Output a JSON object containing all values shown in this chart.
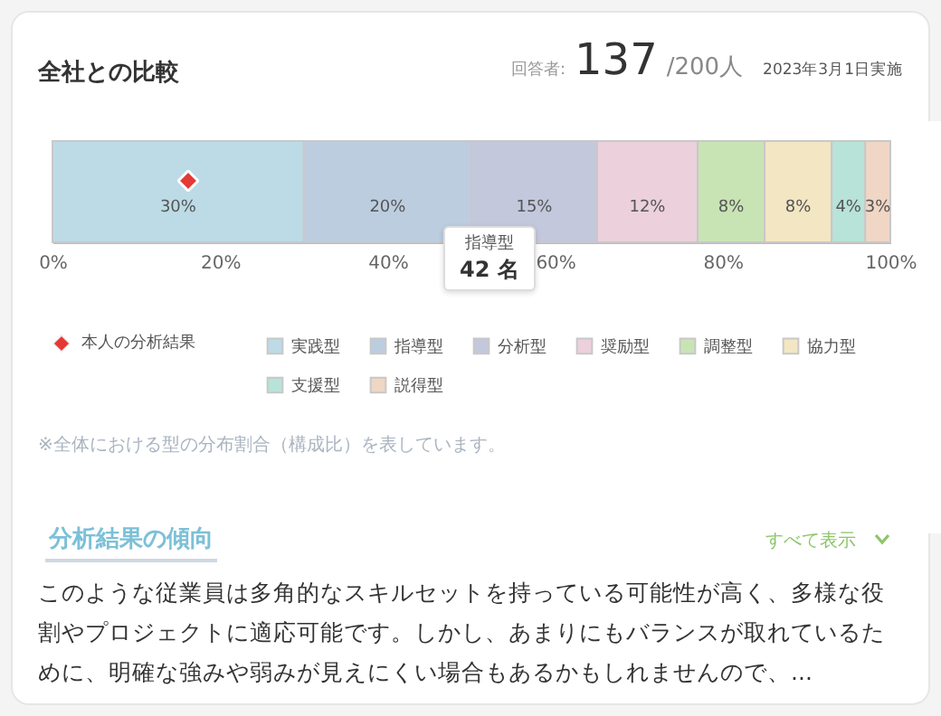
{
  "chart_data": {
    "type": "bar",
    "orientation": "horizontal",
    "stacked": true,
    "title": "全社との比較",
    "categories": [
      null
    ],
    "xlim": [
      0,
      100
    ],
    "xticks": [
      {
        "value": 0,
        "label": "0%"
      },
      {
        "value": 20,
        "label": "20%"
      },
      {
        "value": 40,
        "label": "40%"
      },
      {
        "value": 60,
        "label": "60%"
      },
      {
        "value": 80,
        "label": "80%"
      },
      {
        "value": 100,
        "label": "100%"
      }
    ],
    "series": [
      {
        "name": "実践型",
        "color": "#bcdbe6",
        "values": [
          30
        ],
        "value_labels": [
          "30%"
        ]
      },
      {
        "name": "指導型",
        "color": "#bccde0",
        "values": [
          20
        ],
        "value_labels": [
          "20%"
        ]
      },
      {
        "name": "分析型",
        "color": "#c3c8dc",
        "values": [
          15
        ],
        "value_labels": [
          "15%"
        ]
      },
      {
        "name": "奨励型",
        "color": "#ecd0dc",
        "values": [
          12
        ],
        "value_labels": [
          "12%"
        ]
      },
      {
        "name": "調整型",
        "color": "#c9e4b4",
        "values": [
          8
        ],
        "value_labels": [
          "8%"
        ]
      },
      {
        "name": "協力型",
        "color": "#f3e6c3",
        "values": [
          8
        ],
        "value_labels": [
          "8%"
        ]
      },
      {
        "name": "支援型",
        "color": "#b8e3d8",
        "values": [
          4
        ],
        "value_labels": [
          "4%"
        ]
      },
      {
        "name": "説得型",
        "color": "#f0d6c4",
        "values": [
          3
        ],
        "value_labels": [
          "3%"
        ]
      }
    ],
    "legend": "bottom",
    "grid": false,
    "annotations": [
      "回答者:",
      "137",
      "/200人",
      "2023年3月1日実施",
      "指導型",
      "42 名",
      "※全体における型の分布割合（構成比）を表しています。",
      "分析結果の傾向",
      "すべて表示",
      "このような従業員は多角的なスキルセットを持っている可能性が高く、多様な役割やプロジェクトに適応可能です。しかし、あまりにもバランスが取れているために、明確な強みや弱みが見えにくい場合もあるかもしれませんので、...",
      "本人の分析結果"
    ]
  }
}
